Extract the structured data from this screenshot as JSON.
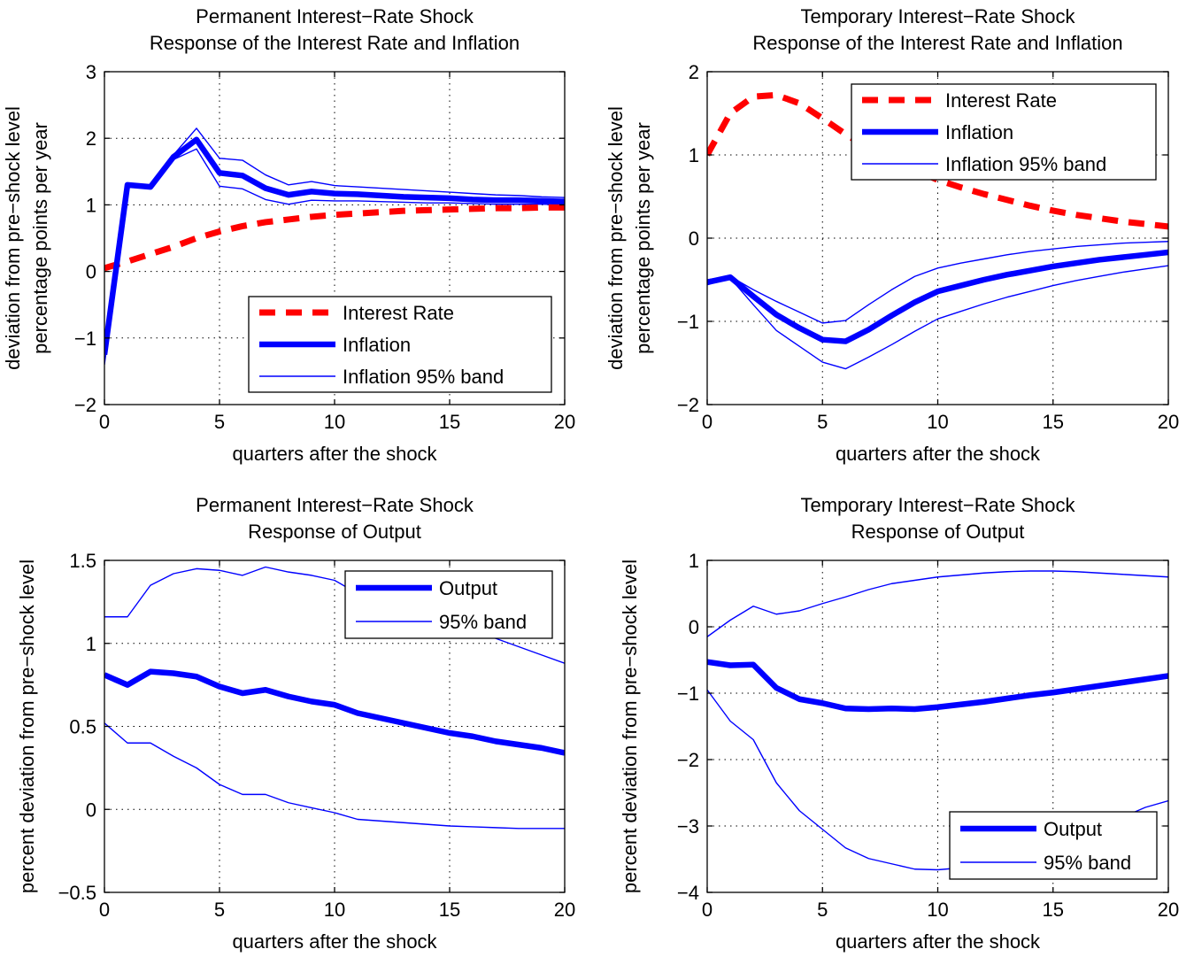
{
  "chart_data": [
    {
      "type": "line",
      "title": [
        "Permanent Interest−Rate Shock",
        "Response of the Interest Rate and Inflation"
      ],
      "xlabel": "quarters after the shock",
      "ylabel": [
        "deviation from pre−shock level",
        "percentage points  per year"
      ],
      "xlim": [
        0,
        20
      ],
      "ylim": [
        -2,
        3
      ],
      "xticks": [
        0,
        5,
        10,
        15,
        20
      ],
      "xtick_labels": [
        "0",
        "5",
        "10",
        "15",
        "20"
      ],
      "yticks": [
        -2,
        -1,
        0,
        1,
        2,
        3
      ],
      "ytick_labels": [
        "−2",
        "−1",
        "0",
        "1",
        "2",
        "3"
      ],
      "grid": true,
      "legend_position": "bottom-right",
      "x": [
        0,
        1,
        2,
        3,
        4,
        5,
        6,
        7,
        8,
        9,
        10,
        11,
        12,
        13,
        14,
        15,
        16,
        17,
        18,
        19,
        20
      ],
      "series": [
        {
          "name": "Interest Rate",
          "style": "dashed-thick",
          "color": "#ff0000",
          "values": [
            0.05,
            0.15,
            0.26,
            0.37,
            0.5,
            0.6,
            0.68,
            0.74,
            0.78,
            0.82,
            0.85,
            0.87,
            0.89,
            0.91,
            0.92,
            0.93,
            0.94,
            0.95,
            0.95,
            0.96,
            0.96
          ]
        },
        {
          "name": "Inflation",
          "style": "solid-thick",
          "color": "#0000ff",
          "values": [
            -1.25,
            1.3,
            1.27,
            1.72,
            1.98,
            1.48,
            1.44,
            1.25,
            1.15,
            1.2,
            1.17,
            1.16,
            1.14,
            1.12,
            1.11,
            1.1,
            1.08,
            1.07,
            1.07,
            1.06,
            1.05
          ]
        },
        {
          "name": "Inflation 95% band",
          "style": "solid-thin",
          "color": "#0000ff",
          "values": [
            -1.1,
            1.32,
            1.29,
            1.75,
            2.15,
            1.7,
            1.67,
            1.45,
            1.3,
            1.35,
            1.29,
            1.27,
            1.25,
            1.23,
            1.21,
            1.19,
            1.17,
            1.15,
            1.14,
            1.12,
            1.11
          ]
        },
        {
          "name": "",
          "style": "solid-thin",
          "color": "#0000ff",
          "values": [
            -1.4,
            1.28,
            1.25,
            1.68,
            1.84,
            1.28,
            1.24,
            1.08,
            1.01,
            1.07,
            1.06,
            1.06,
            1.05,
            1.04,
            1.03,
            1.03,
            1.02,
            1.01,
            1.01,
            1.01,
            1.0
          ]
        }
      ]
    },
    {
      "type": "line",
      "title": [
        "Temporary Interest−Rate Shock",
        "Response of the Interest Rate and Inflation"
      ],
      "xlabel": "quarters after the shock",
      "ylabel": [
        "deviation from pre−shock level",
        "percentage points  per year"
      ],
      "xlim": [
        0,
        20
      ],
      "ylim": [
        -2,
        2
      ],
      "xticks": [
        0,
        5,
        10,
        15,
        20
      ],
      "xtick_labels": [
        "0",
        "5",
        "10",
        "15",
        "20"
      ],
      "yticks": [
        -2,
        -1,
        0,
        1,
        2
      ],
      "ytick_labels": [
        "−2",
        "−1",
        "0",
        "1",
        "2"
      ],
      "grid": true,
      "legend_position": "top-right",
      "x": [
        0,
        1,
        2,
        3,
        4,
        5,
        6,
        7,
        8,
        9,
        10,
        11,
        12,
        13,
        14,
        15,
        16,
        17,
        18,
        19,
        20
      ],
      "series": [
        {
          "name": "Interest Rate",
          "style": "dashed-thick",
          "color": "#ff0000",
          "values": [
            1.0,
            1.5,
            1.7,
            1.72,
            1.62,
            1.44,
            1.25,
            1.08,
            0.94,
            0.82,
            0.7,
            0.61,
            0.53,
            0.46,
            0.39,
            0.33,
            0.28,
            0.24,
            0.2,
            0.17,
            0.14
          ]
        },
        {
          "name": "Inflation",
          "style": "solid-thick",
          "color": "#0000ff",
          "values": [
            -0.53,
            -0.47,
            -0.7,
            -0.92,
            -1.08,
            -1.22,
            -1.24,
            -1.1,
            -0.93,
            -0.77,
            -0.64,
            -0.57,
            -0.5,
            -0.44,
            -0.39,
            -0.34,
            -0.3,
            -0.26,
            -0.23,
            -0.2,
            -0.17
          ]
        },
        {
          "name": "Inflation 95% band",
          "style": "solid-thin",
          "color": "#0000ff",
          "values": [
            -0.5,
            -0.46,
            -0.62,
            -0.76,
            -0.89,
            -1.02,
            -0.99,
            -0.8,
            -0.62,
            -0.46,
            -0.36,
            -0.3,
            -0.25,
            -0.2,
            -0.16,
            -0.13,
            -0.1,
            -0.08,
            -0.06,
            -0.05,
            -0.04
          ]
        },
        {
          "name": "",
          "style": "solid-thin",
          "color": "#0000ff",
          "values": [
            -0.56,
            -0.48,
            -0.8,
            -1.11,
            -1.3,
            -1.49,
            -1.57,
            -1.43,
            -1.28,
            -1.12,
            -0.97,
            -0.88,
            -0.79,
            -0.71,
            -0.64,
            -0.57,
            -0.51,
            -0.46,
            -0.41,
            -0.37,
            -0.33
          ]
        }
      ]
    },
    {
      "type": "line",
      "title": [
        "Permanent Interest−Rate Shock",
        "Response of Output"
      ],
      "xlabel": "quarters after the shock",
      "ylabel": [
        "percent deviation from pre−shock level"
      ],
      "xlim": [
        0,
        20
      ],
      "ylim": [
        -0.5,
        1.5
      ],
      "xticks": [
        0,
        5,
        10,
        15,
        20
      ],
      "xtick_labels": [
        "0",
        "5",
        "10",
        "15",
        "20"
      ],
      "yticks": [
        -0.5,
        0,
        0.5,
        1,
        1.5
      ],
      "ytick_labels": [
        "−0.5",
        "0",
        "0.5",
        "1",
        "1.5"
      ],
      "grid": true,
      "legend_position": "top-right",
      "x": [
        0,
        1,
        2,
        3,
        4,
        5,
        6,
        7,
        8,
        9,
        10,
        11,
        12,
        13,
        14,
        15,
        16,
        17,
        18,
        19,
        20
      ],
      "series": [
        {
          "name": "Output",
          "style": "solid-thick",
          "color": "#0000ff",
          "values": [
            0.81,
            0.75,
            0.83,
            0.82,
            0.8,
            0.74,
            0.7,
            0.72,
            0.68,
            0.65,
            0.63,
            0.58,
            0.55,
            0.52,
            0.49,
            0.46,
            0.44,
            0.41,
            0.39,
            0.37,
            0.34
          ]
        },
        {
          "name": "95% band",
          "style": "solid-thin",
          "color": "#0000ff",
          "values": [
            1.16,
            1.16,
            1.35,
            1.42,
            1.45,
            1.44,
            1.41,
            1.46,
            1.43,
            1.41,
            1.38,
            1.3,
            1.27,
            1.23,
            1.18,
            1.13,
            1.08,
            1.03,
            0.98,
            0.93,
            0.88
          ]
        },
        {
          "name": "",
          "style": "solid-thin",
          "color": "#0000ff",
          "values": [
            0.52,
            0.4,
            0.4,
            0.32,
            0.25,
            0.15,
            0.09,
            0.09,
            0.04,
            0.01,
            -0.02,
            -0.06,
            -0.07,
            -0.08,
            -0.09,
            -0.1,
            -0.105,
            -0.11,
            -0.115,
            -0.115,
            -0.115
          ]
        }
      ]
    },
    {
      "type": "line",
      "title": [
        "Temporary Interest−Rate Shock",
        "Response of Output"
      ],
      "xlabel": "quarters after the shock",
      "ylabel": [
        "percent deviation from pre−shock level"
      ],
      "xlim": [
        0,
        20
      ],
      "ylim": [
        -4,
        1
      ],
      "xticks": [
        0,
        5,
        10,
        15,
        20
      ],
      "xtick_labels": [
        "0",
        "5",
        "10",
        "15",
        "20"
      ],
      "yticks": [
        -4,
        -3,
        -2,
        -1,
        0,
        1
      ],
      "ytick_labels": [
        "−4",
        "−3",
        "−2",
        "−1",
        "0",
        "1"
      ],
      "grid": true,
      "legend_position": "bottom-right",
      "x": [
        0,
        1,
        2,
        3,
        4,
        5,
        6,
        7,
        8,
        9,
        10,
        11,
        12,
        13,
        14,
        15,
        16,
        17,
        18,
        19,
        20
      ],
      "series": [
        {
          "name": "Output",
          "style": "solid-thick",
          "color": "#0000ff",
          "values": [
            -0.53,
            -0.58,
            -0.57,
            -0.92,
            -1.09,
            -1.15,
            -1.23,
            -1.24,
            -1.23,
            -1.24,
            -1.21,
            -1.17,
            -1.13,
            -1.08,
            -1.03,
            -0.99,
            -0.94,
            -0.89,
            -0.84,
            -0.79,
            -0.74
          ]
        },
        {
          "name": "95% band",
          "style": "solid-thin",
          "color": "#0000ff",
          "values": [
            -0.15,
            0.1,
            0.31,
            0.19,
            0.24,
            0.35,
            0.45,
            0.56,
            0.65,
            0.7,
            0.75,
            0.78,
            0.81,
            0.83,
            0.84,
            0.84,
            0.83,
            0.81,
            0.79,
            0.77,
            0.75
          ]
        },
        {
          "name": "",
          "style": "solid-thin",
          "color": "#0000ff",
          "values": [
            -0.95,
            -1.42,
            -1.7,
            -2.35,
            -2.77,
            -3.05,
            -3.33,
            -3.49,
            -3.57,
            -3.65,
            -3.66,
            -3.63,
            -3.58,
            -3.5,
            -3.4,
            -3.28,
            -3.15,
            -3.01,
            -2.87,
            -2.72,
            -2.62
          ]
        }
      ]
    }
  ]
}
